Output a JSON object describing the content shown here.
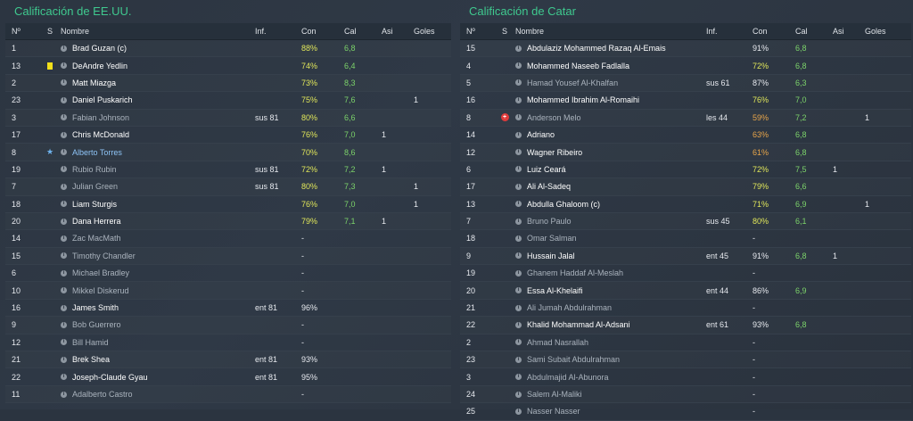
{
  "left": {
    "title": "Calificación de EE.UU.",
    "headers": {
      "no": "Nº",
      "s": "S",
      "name": "Nombre",
      "inf": "Inf.",
      "con": "Con",
      "cal": "Cal",
      "asi": "Asi",
      "goles": "Goles"
    },
    "rows": [
      {
        "no": "1",
        "s": "",
        "name": "Brad Guzan (c)",
        "style": "b",
        "inf": "",
        "con": "88%",
        "con_c": "yel",
        "cal": "6,8",
        "asi": "",
        "goles": ""
      },
      {
        "no": "13",
        "s": "card",
        "name": "DeAndre Yedlin",
        "style": "b",
        "inf": "",
        "con": "74%",
        "con_c": "yel",
        "cal": "6,4",
        "asi": "",
        "goles": ""
      },
      {
        "no": "2",
        "s": "",
        "name": "Matt Miazga",
        "style": "b",
        "inf": "",
        "con": "73%",
        "con_c": "yel",
        "cal": "8,3",
        "asi": "",
        "goles": ""
      },
      {
        "no": "23",
        "s": "",
        "name": "Daniel Puskarich",
        "style": "b",
        "inf": "",
        "con": "75%",
        "con_c": "yel",
        "cal": "7,6",
        "asi": "",
        "goles": "1"
      },
      {
        "no": "3",
        "s": "",
        "name": "Fabian Johnson",
        "style": "g",
        "inf": "sus 81",
        "con": "80%",
        "con_c": "yel",
        "cal": "6,6",
        "asi": "",
        "goles": ""
      },
      {
        "no": "17",
        "s": "",
        "name": "Chris McDonald",
        "style": "b",
        "inf": "",
        "con": "76%",
        "con_c": "yel",
        "cal": "7,0",
        "asi": "1",
        "goles": ""
      },
      {
        "no": "8",
        "s": "star",
        "name": "Alberto Torres",
        "style": "blue",
        "inf": "",
        "con": "70%",
        "con_c": "yel",
        "cal": "8,6",
        "asi": "",
        "goles": ""
      },
      {
        "no": "19",
        "s": "",
        "name": "Rubio Rubin",
        "style": "g",
        "inf": "sus 81",
        "con": "72%",
        "con_c": "yel",
        "cal": "7,2",
        "asi": "1",
        "goles": ""
      },
      {
        "no": "7",
        "s": "",
        "name": "Julian Green",
        "style": "g",
        "inf": "sus 81",
        "con": "80%",
        "con_c": "yel",
        "cal": "7,3",
        "asi": "",
        "goles": "1"
      },
      {
        "no": "18",
        "s": "",
        "name": "Liam Sturgis",
        "style": "b",
        "inf": "",
        "con": "76%",
        "con_c": "yel",
        "cal": "7,0",
        "asi": "",
        "goles": "1"
      },
      {
        "no": "20",
        "s": "",
        "name": "Dana Herrera",
        "style": "b",
        "inf": "",
        "con": "79%",
        "con_c": "yel",
        "cal": "7,1",
        "asi": "1",
        "goles": ""
      },
      {
        "no": "14",
        "s": "",
        "name": "Zac MacMath",
        "style": "g",
        "inf": "",
        "con": "-",
        "con_c": "",
        "cal": "",
        "asi": "",
        "goles": ""
      },
      {
        "no": "15",
        "s": "",
        "name": "Timothy Chandler",
        "style": "g",
        "inf": "",
        "con": "-",
        "con_c": "",
        "cal": "",
        "asi": "",
        "goles": ""
      },
      {
        "no": "6",
        "s": "",
        "name": "Michael Bradley",
        "style": "g",
        "inf": "",
        "con": "-",
        "con_c": "",
        "cal": "",
        "asi": "",
        "goles": ""
      },
      {
        "no": "10",
        "s": "",
        "name": "Mikkel Diskerud",
        "style": "g",
        "inf": "",
        "con": "-",
        "con_c": "",
        "cal": "",
        "asi": "",
        "goles": ""
      },
      {
        "no": "16",
        "s": "",
        "name": "James Smith",
        "style": "b",
        "inf": "ent 81",
        "con": "96%",
        "con_c": "w",
        "cal": "",
        "asi": "",
        "goles": ""
      },
      {
        "no": "9",
        "s": "",
        "name": "Bob Guerrero",
        "style": "g",
        "inf": "",
        "con": "-",
        "con_c": "",
        "cal": "",
        "asi": "",
        "goles": ""
      },
      {
        "no": "12",
        "s": "",
        "name": "Bill Hamid",
        "style": "g",
        "inf": "",
        "con": "-",
        "con_c": "",
        "cal": "",
        "asi": "",
        "goles": ""
      },
      {
        "no": "21",
        "s": "",
        "name": "Brek Shea",
        "style": "b",
        "inf": "ent 81",
        "con": "93%",
        "con_c": "w",
        "cal": "",
        "asi": "",
        "goles": ""
      },
      {
        "no": "22",
        "s": "",
        "name": "Joseph-Claude Gyau",
        "style": "b",
        "inf": "ent 81",
        "con": "95%",
        "con_c": "w",
        "cal": "",
        "asi": "",
        "goles": ""
      },
      {
        "no": "11",
        "s": "",
        "name": "Adalberto Castro",
        "style": "g",
        "inf": "",
        "con": "-",
        "con_c": "",
        "cal": "",
        "asi": "",
        "goles": ""
      }
    ]
  },
  "right": {
    "title": "Calificación de Catar",
    "headers": {
      "no": "Nº",
      "s": "S",
      "name": "Nombre",
      "inf": "Inf.",
      "con": "Con",
      "cal": "Cal",
      "asi": "Asi",
      "goles": "Goles"
    },
    "rows": [
      {
        "no": "15",
        "s": "",
        "name": "Abdulaziz Mohammed Razaq Al-Emais",
        "style": "b",
        "inf": "",
        "con": "91%",
        "con_c": "w",
        "cal": "6,8",
        "asi": "",
        "goles": ""
      },
      {
        "no": "4",
        "s": "",
        "name": "Mohammed Naseeb Fadlalla",
        "style": "b",
        "inf": "",
        "con": "72%",
        "con_c": "yel",
        "cal": "6,8",
        "asi": "",
        "goles": ""
      },
      {
        "no": "5",
        "s": "",
        "name": "Hamad Yousef Al-Khalfan",
        "style": "g",
        "inf": "sus 61",
        "con": "87%",
        "con_c": "w",
        "cal": "6,3",
        "asi": "",
        "goles": ""
      },
      {
        "no": "16",
        "s": "",
        "name": "Mohammed Ibrahim Al-Romaihi",
        "style": "b",
        "inf": "",
        "con": "76%",
        "con_c": "yel",
        "cal": "7,0",
        "asi": "",
        "goles": ""
      },
      {
        "no": "8",
        "s": "inj",
        "name": "Anderson Melo",
        "style": "g",
        "inf": "les 44",
        "con": "59%",
        "con_c": "org",
        "cal": "7,2",
        "asi": "",
        "goles": "1"
      },
      {
        "no": "14",
        "s": "",
        "name": "Adriano",
        "style": "b",
        "inf": "",
        "con": "63%",
        "con_c": "org",
        "cal": "6,8",
        "asi": "",
        "goles": ""
      },
      {
        "no": "12",
        "s": "",
        "name": "Wagner Ribeiro",
        "style": "b",
        "inf": "",
        "con": "61%",
        "con_c": "org",
        "cal": "6,8",
        "asi": "",
        "goles": ""
      },
      {
        "no": "6",
        "s": "",
        "name": "Luiz Ceará",
        "style": "b",
        "inf": "",
        "con": "72%",
        "con_c": "yel",
        "cal": "7,5",
        "asi": "1",
        "goles": ""
      },
      {
        "no": "17",
        "s": "",
        "name": "Ali Al-Sadeq",
        "style": "b",
        "inf": "",
        "con": "79%",
        "con_c": "yel",
        "cal": "6,6",
        "asi": "",
        "goles": ""
      },
      {
        "no": "13",
        "s": "",
        "name": "Abdulla Ghaloom (c)",
        "style": "b",
        "inf": "",
        "con": "71%",
        "con_c": "yel",
        "cal": "6,9",
        "asi": "",
        "goles": "1"
      },
      {
        "no": "7",
        "s": "",
        "name": "Bruno Paulo",
        "style": "g",
        "inf": "sus 45",
        "con": "80%",
        "con_c": "yel",
        "cal": "6,1",
        "asi": "",
        "goles": ""
      },
      {
        "no": "18",
        "s": "",
        "name": "Omar Salman",
        "style": "g",
        "inf": "",
        "con": "-",
        "con_c": "",
        "cal": "",
        "asi": "",
        "goles": ""
      },
      {
        "no": "9",
        "s": "",
        "name": "Hussain Jalal",
        "style": "b",
        "inf": "ent 45",
        "con": "91%",
        "con_c": "w",
        "cal": "6,8",
        "asi": "1",
        "goles": ""
      },
      {
        "no": "19",
        "s": "",
        "name": "Ghanem Haddaf Al-Meslah",
        "style": "g",
        "inf": "",
        "con": "-",
        "con_c": "",
        "cal": "",
        "asi": "",
        "goles": ""
      },
      {
        "no": "20",
        "s": "",
        "name": "Essa Al-Khelaifi",
        "style": "b",
        "inf": "ent 44",
        "con": "86%",
        "con_c": "w",
        "cal": "6,9",
        "asi": "",
        "goles": ""
      },
      {
        "no": "21",
        "s": "",
        "name": "Ali Jumah Abdulrahman",
        "style": "g",
        "inf": "",
        "con": "-",
        "con_c": "",
        "cal": "",
        "asi": "",
        "goles": ""
      },
      {
        "no": "22",
        "s": "",
        "name": "Khalid Mohammad Al-Adsani",
        "style": "b",
        "inf": "ent 61",
        "con": "93%",
        "con_c": "w",
        "cal": "6,8",
        "asi": "",
        "goles": ""
      },
      {
        "no": "2",
        "s": "",
        "name": "Ahmad Nasrallah",
        "style": "g",
        "inf": "",
        "con": "-",
        "con_c": "",
        "cal": "",
        "asi": "",
        "goles": ""
      },
      {
        "no": "23",
        "s": "",
        "name": "Sami Subait Abdulrahman",
        "style": "g",
        "inf": "",
        "con": "-",
        "con_c": "",
        "cal": "",
        "asi": "",
        "goles": ""
      },
      {
        "no": "3",
        "s": "",
        "name": "Abdulmajid Al-Abunora",
        "style": "g",
        "inf": "",
        "con": "-",
        "con_c": "",
        "cal": "",
        "asi": "",
        "goles": ""
      },
      {
        "no": "24",
        "s": "",
        "name": "Salem Al-Maliki",
        "style": "g",
        "inf": "",
        "con": "-",
        "con_c": "",
        "cal": "",
        "asi": "",
        "goles": ""
      },
      {
        "no": "25",
        "s": "",
        "name": "Nasser Nasser",
        "style": "g",
        "inf": "",
        "con": "-",
        "con_c": "",
        "cal": "",
        "asi": "",
        "goles": ""
      }
    ]
  },
  "icons": {
    "info": "info-icon",
    "card": "yellow-card-icon",
    "star": "star-icon",
    "inj": "injury-icon"
  },
  "colors": {
    "title": "#3fc98f",
    "con_yellow": "#e0e65a",
    "con_orange": "#e8a54a",
    "cal_green": "#7cd36a",
    "name_blue": "#8dc3f5"
  }
}
